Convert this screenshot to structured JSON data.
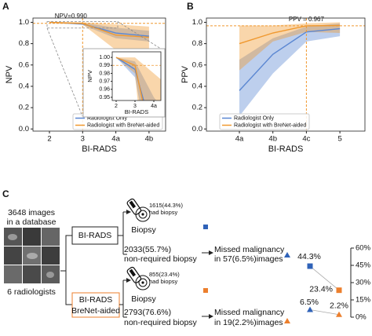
{
  "panel_labels": [
    "A",
    "B",
    "C"
  ],
  "chart_data": [
    {
      "type": "line",
      "ylabel": "NPV",
      "xlabel": "BI-RADS",
      "categories": [
        "2",
        "3",
        "4a",
        "4b"
      ],
      "ylim": [
        -0.02,
        1.04
      ],
      "yticks": [
        {
          "value": 0,
          "label": "0.0"
        },
        0.2,
        0.4,
        0.6,
        0.8,
        {
          "value": 1,
          "label": "1.0"
        }
      ],
      "series": [
        {
          "name": "Radiologist Only",
          "color": "#5b87d2",
          "values": [
            1.0,
            0.985,
            0.9,
            0.87
          ],
          "lower": [
            1.0,
            0.975,
            0.85,
            0.82
          ],
          "upper": [
            1.0,
            0.995,
            0.95,
            0.92
          ]
        },
        {
          "name": "Radiologist with BreNet-aided",
          "color": "#f0982e",
          "values": [
            1.0,
            0.99,
            0.88,
            0.86
          ],
          "lower": [
            1.0,
            0.98,
            0.74,
            0.72
          ],
          "upper": [
            1.0,
            1.0,
            0.98,
            0.96
          ]
        }
      ],
      "legend": "lower right",
      "annotation": {
        "text": "NPV=0.990",
        "x": "3",
        "y": 0.99
      },
      "inset": {
        "ylim": [
          0.946,
          1.007
        ],
        "yticks": [
          0.95,
          0.96,
          0.97,
          0.98,
          0.99,
          {
            "value": 1,
            "label": "1.00"
          }
        ]
      }
    },
    {
      "type": "line",
      "ylabel": "PPV",
      "xlabel": "BI-RADS",
      "categories": [
        "4a",
        "4b",
        "4c",
        "5"
      ],
      "ylim": [
        -0.02,
        1.04
      ],
      "yticks": [
        {
          "value": 0,
          "label": "0.0"
        },
        0.2,
        0.4,
        0.6,
        0.8,
        {
          "value": 1,
          "label": "1.0"
        }
      ],
      "series": [
        {
          "name": "Radiologist Only",
          "color": "#5b87d2",
          "values": [
            0.36,
            0.7,
            0.91,
            0.94
          ],
          "lower": [
            0.12,
            0.52,
            0.82,
            0.87
          ],
          "upper": [
            0.65,
            0.85,
            0.96,
            0.99
          ]
        },
        {
          "name": "Radiologist with BreNet-aided",
          "color": "#f0982e",
          "values": [
            0.8,
            0.9,
            0.967,
            0.97
          ],
          "lower": [
            0.55,
            0.82,
            0.91,
            0.9
          ],
          "upper": [
            0.97,
            0.97,
            0.99,
            1.0
          ]
        }
      ],
      "legend": "lower left",
      "annotation": {
        "text": "PPV = 0.967",
        "x": "4c",
        "y": 0.967
      }
    },
    {
      "type": "dot",
      "ylim": [
        0,
        60
      ],
      "yticks": [
        {
          "value": 0,
          "label": "0%"
        },
        {
          "value": 15,
          "label": "15%"
        },
        {
          "value": 30,
          "label": "30%"
        },
        {
          "value": 45,
          "label": "45%"
        },
        {
          "value": 60,
          "label": "60%"
        }
      ],
      "series": [
        {
          "marker": "square",
          "colors": [
            "#2f62b8",
            "#ec7f2d"
          ],
          "values": [
            44.3,
            23.4
          ],
          "value_labels": [
            "44.3%",
            "23.4%"
          ]
        },
        {
          "marker": "triangle",
          "colors": [
            "#2f62b8",
            "#ec7f2d"
          ],
          "values": [
            6.5,
            2.2
          ],
          "value_labels": [
            "6.5%",
            "2.2%"
          ]
        }
      ]
    }
  ],
  "diagram": {
    "database": [
      "3648 images",
      "in a database"
    ],
    "readers": "6 radiologists",
    "arms": [
      {
        "method": [
          "BI-RADS"
        ],
        "biopsy_count": [
          "1615(44.3%)",
          "had biopsy"
        ],
        "biopsy": "Biopsy",
        "non_required": [
          "2033(55.7%)",
          "non-required biopsy"
        ],
        "missed": [
          "Missed malignancy",
          "in 57(6.5%)images"
        ]
      },
      {
        "method": [
          "BI-RADS",
          "BreNet-aided"
        ],
        "biopsy_count": [
          "855(23.4%)",
          "had biopsy"
        ],
        "biopsy": "Biopsy",
        "non_required": [
          "2793(76.6%)",
          "non-required biopsy"
        ],
        "missed": [
          "Missed malignancy",
          "in 19(2.2%)images"
        ]
      }
    ]
  }
}
